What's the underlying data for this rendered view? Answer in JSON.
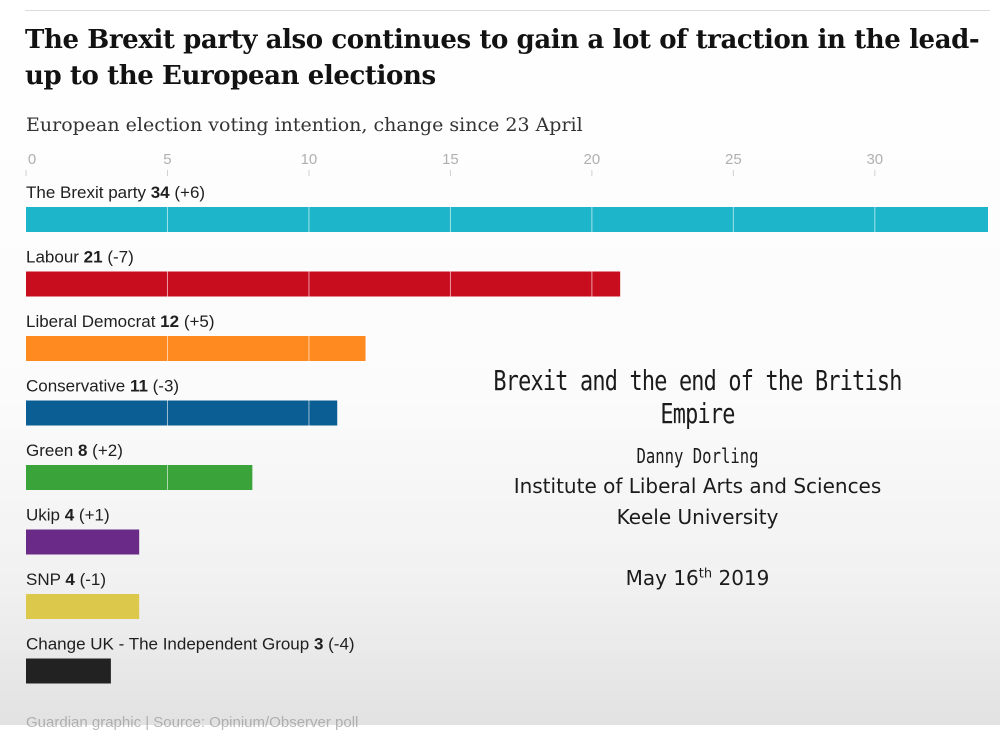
{
  "chart_data": {
    "type": "bar",
    "orientation": "horizontal",
    "title": "The Brexit party also continues to gain a lot of traction in the lead-up to the European elections",
    "subtitle": "European election voting intention, change since 23 April",
    "xlim": [
      0,
      34
    ],
    "xticks": [
      0,
      5,
      10,
      15,
      20,
      25,
      30
    ],
    "grid": true,
    "categories": [
      "The Brexit party",
      "Labour",
      "Liberal Democrat",
      "Conservative",
      "Green",
      "Ukip",
      "SNP",
      "Change UK - The Independent Group"
    ],
    "values": [
      34,
      21,
      12,
      11,
      8,
      4,
      4,
      3
    ],
    "changes": [
      "(+6)",
      "(-7)",
      "(+5)",
      "(-3)",
      "(+2)",
      "(+1)",
      "(-1)",
      "(-4)"
    ],
    "colors": [
      "#1cb5c9",
      "#c70d1e",
      "#ff8a1f",
      "#0a5e93",
      "#3aa33a",
      "#6a2a87",
      "#dcc84a",
      "#222222"
    ],
    "footnote": "Guardian graphic | Source: Opinium/Observer poll"
  },
  "overlay": {
    "title": "Brexit and the end of the British Empire",
    "author": "Danny Dorling",
    "institution": "Institute of Liberal Arts and Sciences",
    "university": "Keele University",
    "date_prefix": "May 16",
    "date_sup": "th",
    "date_suffix": " 2019"
  }
}
